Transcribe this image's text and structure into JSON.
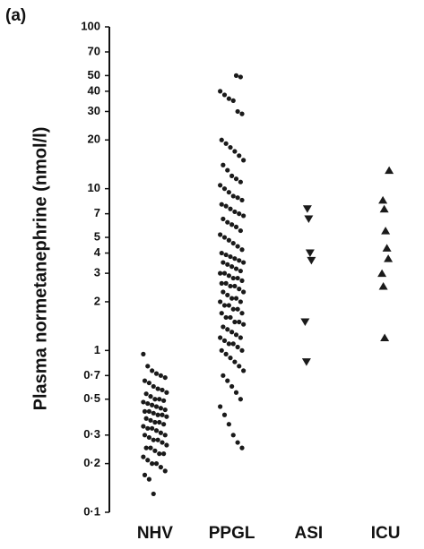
{
  "chart_data": {
    "type": "strip",
    "panel_label": "(a)",
    "y_label": "Plasma normetanephrine (nmol/l)",
    "log_y": true,
    "ylim": [
      0.1,
      100
    ],
    "yticks": [
      {
        "value": 0.1,
        "label": "0·1"
      },
      {
        "value": 0.2,
        "label": "0·2"
      },
      {
        "value": 0.3,
        "label": "0·3"
      },
      {
        "value": 0.5,
        "label": "0·5"
      },
      {
        "value": 0.7,
        "label": "0·7"
      },
      1,
      2,
      3,
      4,
      5,
      7,
      10,
      20,
      30,
      40,
      50,
      70,
      100
    ],
    "categories": [
      "NHV",
      "PPGL",
      "ASI",
      "ICU"
    ],
    "markers": [
      "circle",
      "circle",
      "triangle-down",
      "triangle-up"
    ],
    "color": "#1a1a1a",
    "values": [
      [
        0.95,
        0.8,
        0.75,
        0.72,
        0.7,
        0.68,
        0.65,
        0.63,
        0.6,
        0.58,
        0.57,
        0.55,
        0.54,
        0.52,
        0.5,
        0.5,
        0.49,
        0.48,
        0.47,
        0.46,
        0.45,
        0.44,
        0.43,
        0.42,
        0.42,
        0.41,
        0.4,
        0.4,
        0.39,
        0.38,
        0.37,
        0.36,
        0.36,
        0.35,
        0.34,
        0.33,
        0.33,
        0.32,
        0.31,
        0.3,
        0.3,
        0.29,
        0.28,
        0.28,
        0.27,
        0.26,
        0.25,
        0.25,
        0.24,
        0.23,
        0.23,
        0.22,
        0.21,
        0.2,
        0.2,
        0.19,
        0.18,
        0.17,
        0.16,
        0.13
      ],
      [
        50,
        49,
        40,
        38,
        36,
        35,
        30,
        29,
        20,
        19,
        18,
        17,
        16,
        15,
        14,
        13,
        12,
        11.5,
        11,
        10.5,
        10,
        9.5,
        9,
        8.8,
        8.5,
        8,
        7.8,
        7.5,
        7.2,
        7,
        6.8,
        6.5,
        6.2,
        6,
        5.8,
        5.5,
        5.2,
        5,
        4.8,
        4.6,
        4.4,
        4.2,
        4,
        3.9,
        3.8,
        3.7,
        3.6,
        3.5,
        3.5,
        3.4,
        3.3,
        3.2,
        3.1,
        3,
        3,
        2.9,
        2.8,
        2.8,
        2.7,
        2.6,
        2.6,
        2.5,
        2.5,
        2.4,
        2.3,
        2.3,
        2.2,
        2.1,
        2.1,
        2,
        2,
        1.9,
        1.9,
        1.8,
        1.8,
        1.7,
        1.7,
        1.6,
        1.6,
        1.5,
        1.5,
        1.45,
        1.4,
        1.35,
        1.3,
        1.25,
        1.2,
        1.2,
        1.15,
        1.1,
        1.1,
        1.05,
        1,
        1,
        0.95,
        0.9,
        0.85,
        0.8,
        0.75,
        0.7,
        0.65,
        0.6,
        0.55,
        0.5,
        0.45,
        0.4,
        0.35,
        0.3,
        0.27,
        0.25
      ],
      [
        7.5,
        6.5,
        4,
        3.6,
        1.5,
        0.85
      ],
      [
        13,
        8.5,
        7.5,
        5.5,
        4.3,
        3.7,
        3,
        2.5,
        1.2
      ]
    ]
  }
}
